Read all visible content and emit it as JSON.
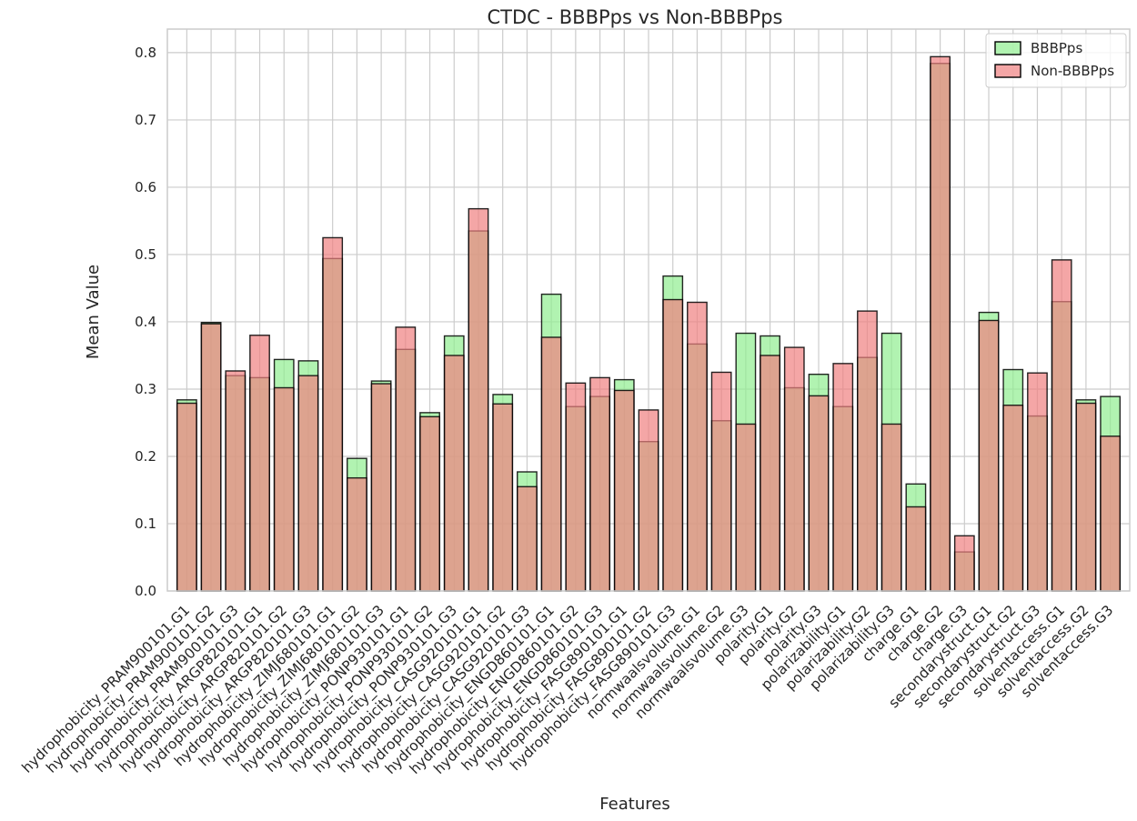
{
  "chart_data": {
    "type": "bar",
    "title": "CTDC - BBBPps  vs Non-BBBPps",
    "xlabel": "Features",
    "ylabel": "Mean Value",
    "ylim": [
      0,
      0.835
    ],
    "yticks": [
      "0.0",
      "0.1",
      "0.2",
      "0.3",
      "0.4",
      "0.5",
      "0.6",
      "0.7",
      "0.8"
    ],
    "grid": true,
    "legend_position": "top-right",
    "categories": [
      "hydrophobicity_PRAM900101.G1",
      "hydrophobicity_PRAM900101.G2",
      "hydrophobicity_PRAM900101.G3",
      "hydrophobicity_ARGP820101.G1",
      "hydrophobicity_ARGP820101.G2",
      "hydrophobicity_ARGP820101.G3",
      "hydrophobicity_ZIMJ680101.G1",
      "hydrophobicity_ZIMJ680101.G2",
      "hydrophobicity_ZIMJ680101.G3",
      "hydrophobicity_PONP930101.G1",
      "hydrophobicity_PONP930101.G2",
      "hydrophobicity_PONP930101.G3",
      "hydrophobicity_CASG920101.G1",
      "hydrophobicity_CASG920101.G2",
      "hydrophobicity_CASG920101.G3",
      "hydrophobicity_ENGD860101.G1",
      "hydrophobicity_ENGD860101.G2",
      "hydrophobicity_ENGD860101.G3",
      "hydrophobicity_FASG890101.G1",
      "hydrophobicity_FASG890101.G2",
      "hydrophobicity_FASG890101.G3",
      "normwaalsvolume.G1",
      "normwaalsvolume.G2",
      "normwaalsvolume.G3",
      "polarity.G1",
      "polarity.G2",
      "polarity.G3",
      "polarizability.G1",
      "polarizability.G2",
      "polarizability.G3",
      "charge.G1",
      "charge.G2",
      "charge.G3",
      "secondarystruct.G1",
      "secondarystruct.G2",
      "secondarystruct.G3",
      "solventaccess.G1",
      "solventaccess.G2",
      "solventaccess.G3"
    ],
    "series": [
      {
        "name": "BBBPps",
        "color": "#90ee90",
        "values": [
          0.284,
          0.399,
          0.32,
          0.317,
          0.344,
          0.342,
          0.494,
          0.197,
          0.312,
          0.359,
          0.265,
          0.379,
          0.535,
          0.292,
          0.177,
          0.441,
          0.274,
          0.289,
          0.314,
          0.222,
          0.468,
          0.367,
          0.253,
          0.383,
          0.379,
          0.302,
          0.322,
          0.274,
          0.347,
          0.383,
          0.159,
          0.784,
          0.058,
          0.414,
          0.329,
          0.26,
          0.43,
          0.284,
          0.289
        ]
      },
      {
        "name": "Non-BBBPps",
        "color": "#f08080",
        "values": [
          0.279,
          0.397,
          0.327,
          0.38,
          0.302,
          0.32,
          0.525,
          0.168,
          0.308,
          0.392,
          0.259,
          0.35,
          0.568,
          0.278,
          0.155,
          0.377,
          0.309,
          0.317,
          0.298,
          0.269,
          0.433,
          0.429,
          0.325,
          0.248,
          0.35,
          0.362,
          0.29,
          0.338,
          0.416,
          0.248,
          0.125,
          0.794,
          0.082,
          0.402,
          0.276,
          0.324,
          0.492,
          0.279,
          0.23
        ]
      }
    ]
  }
}
